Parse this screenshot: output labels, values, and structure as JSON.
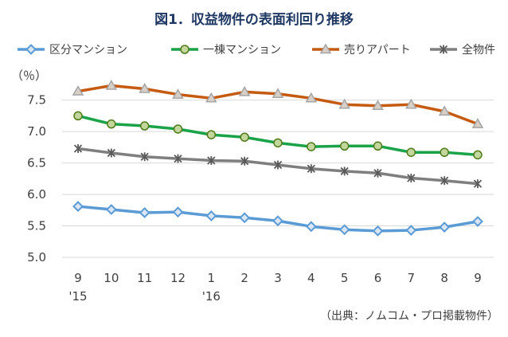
{
  "chart_data": {
    "type": "line",
    "title": "図1．収益物件の表面利回り推移",
    "unit_label": "（％）",
    "source_note": "（出典：ノムコム・プロ掲載物件）",
    "categories": [
      "9",
      "10",
      "11",
      "12",
      "1",
      "2",
      "3",
      "4",
      "5",
      "6",
      "7",
      "8",
      "9"
    ],
    "year_labels": [
      "'15",
      "",
      "",
      "",
      "'16",
      "",
      "",
      "",
      "",
      "",
      "",
      "",
      ""
    ],
    "ylim": [
      5.0,
      7.8
    ],
    "yticks": [
      "5.0",
      "5.5",
      "6.0",
      "6.5",
      "7.0",
      "7.5"
    ],
    "grid": "horizontal",
    "legend_position": "top",
    "series": [
      {
        "name": "区分マンション",
        "color": "#5b9bd5",
        "marker": "diamond",
        "marker_fill": "#dae6f3",
        "values": [
          5.81,
          5.76,
          5.71,
          5.72,
          5.66,
          5.63,
          5.58,
          5.49,
          5.44,
          5.42,
          5.43,
          5.48,
          5.57
        ]
      },
      {
        "name": "一棟マンション",
        "color": "#1aa349",
        "marker": "circle",
        "marker_fill": "#c3d69b",
        "values": [
          7.25,
          7.12,
          7.09,
          7.04,
          6.95,
          6.91,
          6.82,
          6.76,
          6.77,
          6.77,
          6.67,
          6.67,
          6.63
        ]
      },
      {
        "name": "売りアパート",
        "color": "#c55a11",
        "marker": "triangle",
        "marker_fill": "#d8cfc6",
        "values": [
          7.64,
          7.73,
          7.68,
          7.59,
          7.53,
          7.63,
          7.6,
          7.53,
          7.43,
          7.41,
          7.43,
          7.32,
          7.12
        ]
      },
      {
        "name": "全物件",
        "color": "#7f7f7f",
        "marker": "star",
        "marker_fill": "#595959",
        "values": [
          6.73,
          6.66,
          6.6,
          6.57,
          6.54,
          6.53,
          6.47,
          6.41,
          6.37,
          6.34,
          6.26,
          6.22,
          6.17
        ]
      }
    ]
  }
}
